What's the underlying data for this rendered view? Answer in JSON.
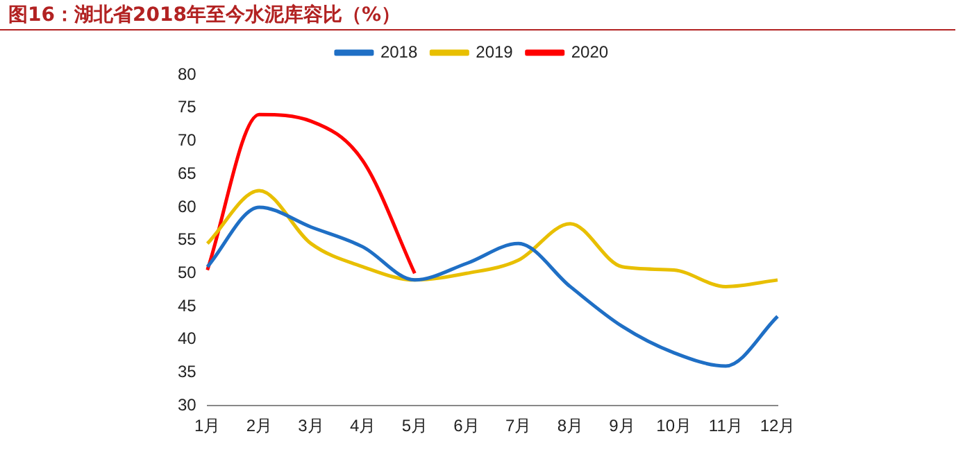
{
  "chart_data": {
    "type": "line",
    "title": "图16：湖北省2018年至今水泥库容比（%）",
    "categories": [
      "1月",
      "2月",
      "3月",
      "4月",
      "5月",
      "6月",
      "7月",
      "8月",
      "9月",
      "10月",
      "11月",
      "12月"
    ],
    "series": [
      {
        "name": "2018",
        "color": "#1f6fc5",
        "values": [
          51,
          60,
          57,
          54,
          49,
          51.5,
          54.5,
          48,
          42,
          38,
          36,
          43.5
        ]
      },
      {
        "name": "2019",
        "color": "#e8bf00",
        "values": [
          54.5,
          62.5,
          54.5,
          51,
          49,
          50,
          52,
          57.5,
          51,
          50.5,
          48,
          49
        ]
      },
      {
        "name": "2020",
        "color": "#ff0000",
        "values": [
          50.5,
          74,
          73,
          67,
          50,
          null,
          null,
          null,
          null,
          null,
          null,
          null
        ]
      }
    ],
    "ylim": [
      30,
      80
    ],
    "yticks": [
      30,
      35,
      40,
      45,
      50,
      55,
      60,
      65,
      70,
      75,
      80
    ],
    "grid": false,
    "legend": "top",
    "marker": "none",
    "line_style": "solid"
  }
}
